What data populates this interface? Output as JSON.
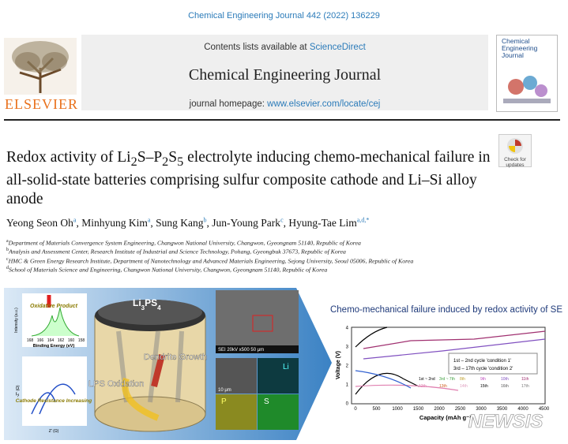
{
  "header": {
    "citation": "Chemical Engineering Journal 442 (2022) 136229",
    "contents_prefix": "Contents lists available at ",
    "contents_link": "ScienceDirect",
    "journal": "Chemical Engineering Journal",
    "homepage_prefix": "journal homepage: ",
    "homepage_link": "www.elsevier.com/locate/cej",
    "publisher": "ELSEVIER",
    "cover_title": "Chemical Engineering Journal"
  },
  "badge": "Check for updates",
  "title": [
    "Redox activity of Li",
    "2",
    "S–P",
    "2",
    "S",
    "5",
    " electrolyte inducing chemo-mechanical failure in all-solid-state batteries comprising sulfur composite cathode and Li–Si alloy anode"
  ],
  "authors": [
    {
      "name": "Yeong Seon Oh",
      "affil": "a"
    },
    {
      "name": "Minhyung Kim",
      "affil": "a"
    },
    {
      "name": "Sung Kang",
      "affil": "b"
    },
    {
      "name": "Jun-Young Park",
      "affil": "c"
    },
    {
      "name": "Hyung-Tae Lim",
      "affil": "a,d,*"
    }
  ],
  "affiliations": [
    {
      "label": "a",
      "text": "Department of Materials Convergence System Engineering, Changwon National University, Changwon, Gyeongnam 51140, Republic of Korea"
    },
    {
      "label": "b",
      "text": "Analysis and Assessment Center, Research Institute of Industrial and Science Technology, Pohang, Gyeongbuk 37673, Republic of Korea"
    },
    {
      "label": "c",
      "text": "HMC & Green Energy Research Institute, Department of Nanotechnology and Advanced Materials Engineering, Sejong University, Seoul 05006, Republic of Korea"
    },
    {
      "label": "d",
      "text": "School of Materials Science and Engineering, Changwon National University, Changwon, Gyeongnam 51140, Republic of Korea"
    }
  ],
  "graphical_abstract": {
    "xps": {
      "ylabel": "Intensity (a.u.)",
      "annotation": "Oxidative Product",
      "xlabel": "Binding Energy (eV)",
      "xticks": [
        "168",
        "166",
        "164",
        "162",
        "160",
        "158"
      ]
    },
    "impedance": {
      "annotation": "Cathode Resistance Increasing",
      "xlabel": "Z' (Ω)",
      "ylabel": "-Z'' (Ω)"
    },
    "battery": {
      "species": [
        "Li",
        "3",
        "PS",
        "4"
      ],
      "growth": "Dendrite Growth",
      "oxidation": "LPS Oxidation"
    },
    "sem": {
      "info": "SEI   20kV   x500   50 μm",
      "scale": "10 μm",
      "maps": [
        "Li",
        "P",
        "S"
      ]
    },
    "chart": {
      "title": "Chemo-mechanical failure induced by redox activity of SE",
      "ylabel": "Voltage (V)",
      "xlabel": "Capacity (mAh g⁻¹)",
      "xticks": [
        "0",
        "500",
        "1000",
        "1500",
        "2000",
        "2500",
        "3000",
        "3500",
        "4000",
        "4500"
      ],
      "yticks": [
        "0",
        "1",
        "2",
        "3",
        "4"
      ],
      "legend": [
        "1st – 2nd cycle  'condition 1'",
        "3rd – 17th cycle  'condition 2'"
      ],
      "cycles": [
        "1st ~ 2nd",
        "3rd ~ 7th",
        "8th",
        "9th",
        "10th",
        "11th",
        "12th",
        "13th",
        "14th",
        "15th",
        "16th",
        "17th"
      ]
    },
    "watermark": "NEWSIS"
  }
}
